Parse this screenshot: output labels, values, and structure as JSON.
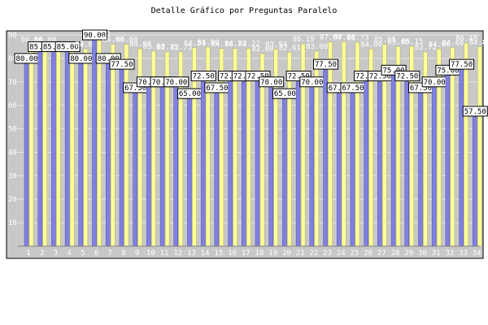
{
  "chart_data": {
    "type": "bar",
    "title": "Detalle Gráfico por Preguntas Paralelo",
    "xlabel": "",
    "ylabel": "",
    "ylim": [
      0,
      90
    ],
    "yticks": [
      10,
      20,
      30,
      40,
      50,
      60,
      70,
      80,
      90
    ],
    "grid": true,
    "categories": [
      "1",
      "2",
      "3",
      "4",
      "5",
      "6",
      "7",
      "8",
      "9",
      "10",
      "11",
      "12",
      "13",
      "14",
      "15",
      "16",
      "17",
      "18",
      "19",
      "20",
      "21",
      "22",
      "23",
      "24",
      "25",
      "26",
      "27",
      "28",
      "29",
      "30",
      "31",
      "32",
      "33",
      "34"
    ],
    "series": [
      {
        "values": [
          80.0,
          85.0,
          85.0,
          85.0,
          80.0,
          90.0,
          80.0,
          77.5,
          67.5,
          70.0,
          70.0,
          70.0,
          65.0,
          72.5,
          67.5,
          72.5,
          72.5,
          72.5,
          70.0,
          65.0,
          72.5,
          70.0,
          77.5,
          67.5,
          67.5,
          72.5,
          72.5,
          75.0,
          72.5,
          67.5,
          70.0,
          75.0,
          77.5,
          57.5
        ]
      },
      {
        "values": [
          86.0,
          86.0,
          84.0,
          84.0,
          84.0,
          88.42,
          86.0,
          86.0,
          84.08,
          83.08,
          82.75,
          82.75,
          84.51,
          84.8,
          84.16,
          84.22,
          84.22,
          82.0,
          83.94,
          82.61,
          86.19,
          83.0,
          87.0,
          87.08,
          86.73,
          84.0,
          85.95,
          85.0,
          85.15,
          82.72,
          84.0,
          84.66,
          86.48,
          84.88
        ]
      }
    ],
    "colors": {
      "series_a": "#8080e0",
      "series_b": "#ffff99",
      "plot_bg": "#c8c8c8",
      "grid": "#e6e6e6"
    }
  }
}
